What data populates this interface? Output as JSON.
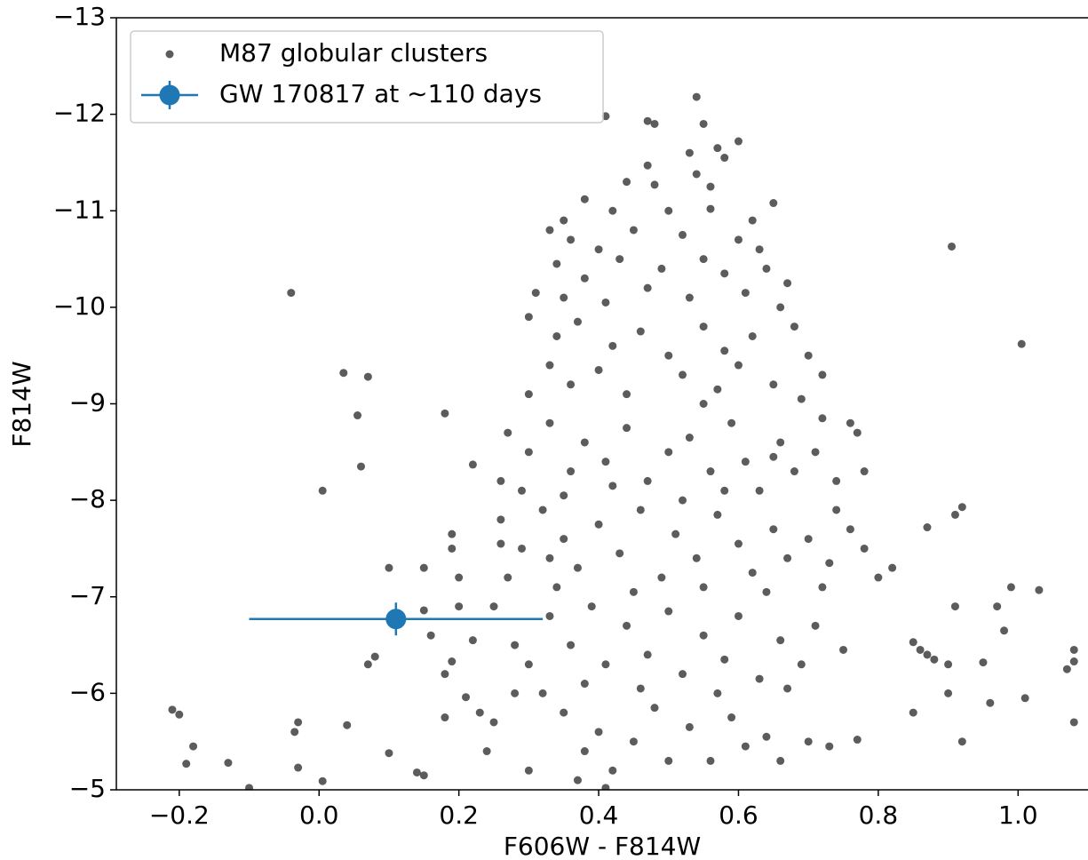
{
  "chart_data": {
    "type": "scatter",
    "xlabel": "F606W - F814W",
    "ylabel": "F814W",
    "xlim": [
      -0.29,
      1.1
    ],
    "ylim": [
      -5,
      -13
    ],
    "xticks": [
      {
        "value": -0.2,
        "label": "−0.2"
      },
      {
        "value": 0,
        "label": "0.0"
      },
      {
        "value": 0.2,
        "label": "0.2"
      },
      {
        "value": 0.4,
        "label": "0.4"
      },
      {
        "value": 0.6,
        "label": "0.6"
      },
      {
        "value": 0.8,
        "label": "0.8"
      },
      {
        "value": 1,
        "label": "1.0"
      }
    ],
    "yticks": [
      {
        "value": -5,
        "label": "−5"
      },
      {
        "value": -6,
        "label": "−6"
      },
      {
        "value": -7,
        "label": "−7"
      },
      {
        "value": -8,
        "label": "−8"
      },
      {
        "value": -9,
        "label": "−9"
      },
      {
        "value": -10,
        "label": "−10"
      },
      {
        "value": -11,
        "label": "−11"
      },
      {
        "value": -12,
        "label": "−12"
      },
      {
        "value": -13,
        "label": "−13"
      }
    ],
    "legend": "upper left",
    "series": [
      {
        "name": "M87 globular clusters",
        "color": "#404040",
        "x": [
          -0.04,
          0.035,
          0.07,
          0.055,
          0.06,
          0.005,
          0.18,
          -0.21,
          -0.2,
          -0.18,
          -0.19,
          -0.13,
          -0.1,
          -0.035,
          -0.03,
          -0.03,
          0.005,
          0.04,
          0.07,
          0.08,
          0.1,
          0.1,
          0.14,
          0.15,
          0.15,
          0.15,
          0.16,
          0.18,
          0.18,
          0.19,
          0.19,
          0.19,
          0.2,
          0.2,
          0.22,
          0.22,
          0.21,
          0.23,
          0.24,
          0.25,
          0.25,
          0.26,
          0.26,
          0.27,
          0.28,
          0.28,
          0.3,
          0.3,
          0.32,
          0.33,
          0.41,
          1.005,
          0.905,
          0.91,
          0.92,
          0.92,
          0.95,
          0.96,
          0.97,
          0.98,
          0.99,
          1.01,
          1.03,
          1.07,
          1.08,
          1.08,
          1.08,
          0.87,
          0.88,
          0.85,
          0.86,
          0.85,
          0.9,
          0.9,
          0.91,
          0.87,
          0.78,
          0.8,
          0.82,
          0.77,
          0.76,
          0.77,
          0.72,
          0.74,
          0.54,
          0.47,
          0.48,
          0.55,
          0.53,
          0.57,
          0.6,
          0.58,
          0.47,
          0.54,
          0.44,
          0.56,
          0.48,
          0.38,
          0.65,
          0.42,
          0.5,
          0.56,
          0.62,
          0.35,
          0.33,
          0.36,
          0.4,
          0.45,
          0.52,
          0.6,
          0.63,
          0.34,
          0.38,
          0.43,
          0.49,
          0.55,
          0.58,
          0.64,
          0.67,
          0.31,
          0.35,
          0.41,
          0.47,
          0.53,
          0.61,
          0.66,
          0.3,
          0.34,
          0.37,
          0.42,
          0.46,
          0.5,
          0.55,
          0.58,
          0.62,
          0.68,
          0.7,
          0.33,
          0.36,
          0.4,
          0.44,
          0.52,
          0.55,
          0.57,
          0.6,
          0.65,
          0.69,
          0.72,
          0.3,
          0.27,
          0.3,
          0.33,
          0.36,
          0.38,
          0.41,
          0.44,
          0.47,
          0.5,
          0.53,
          0.56,
          0.59,
          0.61,
          0.63,
          0.66,
          0.68,
          0.71,
          0.74,
          0.29,
          0.35,
          0.42,
          0.52,
          0.58,
          0.65,
          0.26,
          0.29,
          0.32,
          0.35,
          0.37,
          0.4,
          0.43,
          0.46,
          0.49,
          0.51,
          0.54,
          0.57,
          0.6,
          0.62,
          0.65,
          0.67,
          0.7,
          0.73,
          0.76,
          0.78,
          0.34,
          0.45,
          0.55,
          0.64,
          0.72,
          0.33,
          0.36,
          0.39,
          0.41,
          0.44,
          0.47,
          0.5,
          0.52,
          0.55,
          0.58,
          0.6,
          0.63,
          0.66,
          0.69,
          0.71,
          0.75,
          0.38,
          0.46,
          0.57,
          0.67,
          0.35,
          0.38,
          0.4,
          0.42,
          0.45,
          0.48,
          0.5,
          0.53,
          0.56,
          0.59,
          0.61,
          0.64,
          0.66,
          0.7,
          0.73,
          0.37,
          0.41
        ],
        "y": [
          -10.15,
          -9.32,
          -9.28,
          -8.88,
          -8.35,
          -8.1,
          -8.9,
          -5.83,
          -5.78,
          -5.45,
          -5.27,
          -5.28,
          -5.02,
          -5.6,
          -5.7,
          -5.23,
          -5.09,
          -5.67,
          -6.3,
          -6.38,
          -7.3,
          -5.38,
          -5.18,
          -5.15,
          -6.86,
          -7.3,
          -6.6,
          -6.2,
          -5.75,
          -6.33,
          -7.5,
          -7.65,
          -6.9,
          -7.2,
          -6.55,
          -8.37,
          -5.96,
          -5.8,
          -5.4,
          -5.7,
          -6.9,
          -7.55,
          -8.2,
          -7.2,
          -6.5,
          -6.0,
          -5.2,
          -6.3,
          -6.0,
          -7.4,
          -11.98,
          -9.62,
          -10.63,
          -7.85,
          -7.93,
          -5.5,
          -6.32,
          -5.9,
          -6.9,
          -6.65,
          -7.1,
          -5.95,
          -7.07,
          -6.25,
          -6.45,
          -6.33,
          -5.7,
          -6.4,
          -6.35,
          -6.53,
          -6.45,
          -5.8,
          -6.0,
          -6.3,
          -6.9,
          -7.72,
          -8.3,
          -7.2,
          -7.3,
          -5.52,
          -8.8,
          -8.7,
          -8.85,
          -7.9,
          -12.18,
          -11.93,
          -11.9,
          -11.9,
          -11.6,
          -11.65,
          -11.72,
          -11.55,
          -11.47,
          -11.38,
          -11.3,
          -11.25,
          -11.27,
          -11.12,
          -11.08,
          -11.0,
          -11.0,
          -11.02,
          -10.9,
          -10.9,
          -10.8,
          -10.7,
          -10.6,
          -10.8,
          -10.75,
          -10.7,
          -10.6,
          -10.45,
          -10.3,
          -10.5,
          -10.4,
          -10.5,
          -10.35,
          -10.4,
          -10.25,
          -10.15,
          -10.1,
          -10.05,
          -10.2,
          -10.1,
          -10.15,
          -10.0,
          -9.9,
          -9.7,
          -9.85,
          -9.6,
          -9.75,
          -9.5,
          -9.8,
          -9.55,
          -9.7,
          -9.8,
          -9.5,
          -9.4,
          -9.2,
          -9.35,
          -9.1,
          -9.3,
          -9.0,
          -9.15,
          -9.4,
          -9.2,
          -9.05,
          -9.3,
          -9.1,
          -8.7,
          -8.5,
          -8.8,
          -8.3,
          -8.6,
          -8.4,
          -8.75,
          -8.2,
          -8.5,
          -8.65,
          -8.3,
          -8.8,
          -8.4,
          -8.1,
          -8.6,
          -8.3,
          -8.5,
          -8.2,
          -8.1,
          -8.05,
          -8.15,
          -8.0,
          -8.1,
          -8.45,
          -7.8,
          -7.5,
          -7.9,
          -7.6,
          -7.3,
          -7.75,
          -7.45,
          -7.9,
          -7.2,
          -7.65,
          -7.4,
          -7.85,
          -7.55,
          -7.25,
          -7.7,
          -7.4,
          -7.6,
          -7.35,
          -7.7,
          -7.5,
          -7.1,
          -7.05,
          -7.1,
          -7.05,
          -7.1,
          -6.8,
          -6.5,
          -6.9,
          -6.3,
          -6.7,
          -6.4,
          -6.85,
          -6.2,
          -6.6,
          -6.35,
          -6.8,
          -6.15,
          -6.55,
          -6.3,
          -6.7,
          -6.45,
          -6.1,
          -6.05,
          -6.0,
          -6.05,
          -5.8,
          -5.4,
          -5.6,
          -5.2,
          -5.5,
          -5.85,
          -5.3,
          -5.65,
          -5.3,
          -5.75,
          -5.45,
          -5.55,
          -5.3,
          -5.5,
          -5.45,
          -5.1,
          -5.02
        ]
      },
      {
        "name": "GW 170817 at ∼110 days",
        "color": "#1f77b4",
        "x": [
          0.11
        ],
        "y": [
          -6.77
        ],
        "xerr": [
          0.21
        ],
        "yerr": [
          0.17
        ]
      }
    ]
  }
}
